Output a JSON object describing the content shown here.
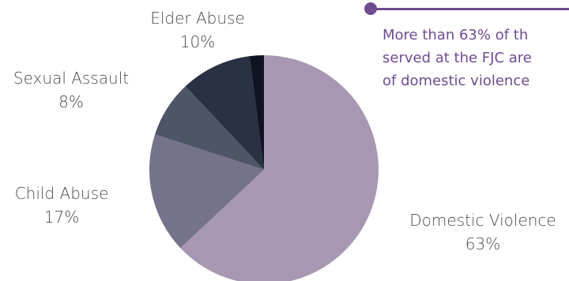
{
  "chart_data": {
    "type": "pie",
    "title": "",
    "slices": [
      {
        "name": "Domestic Violence",
        "value": 63,
        "label": "63%",
        "color": "#a897b3"
      },
      {
        "name": "Child Abuse",
        "value": 17,
        "label": "17%",
        "color": "#75728b"
      },
      {
        "name": "Sexual Assault",
        "value": 8,
        "label": "8%",
        "color": "#4d5567"
      },
      {
        "name": "Elder Abuse",
        "value": 10,
        "label": "10%",
        "color": "#293142"
      },
      {
        "name": "",
        "value": 2,
        "label": "",
        "color": "#0e1420"
      }
    ]
  },
  "callout": {
    "heading": "",
    "lines": [
      "More than 63% of th",
      "served at the FJC are",
      "of domestic violence"
    ],
    "color": "#6f4b8f"
  }
}
